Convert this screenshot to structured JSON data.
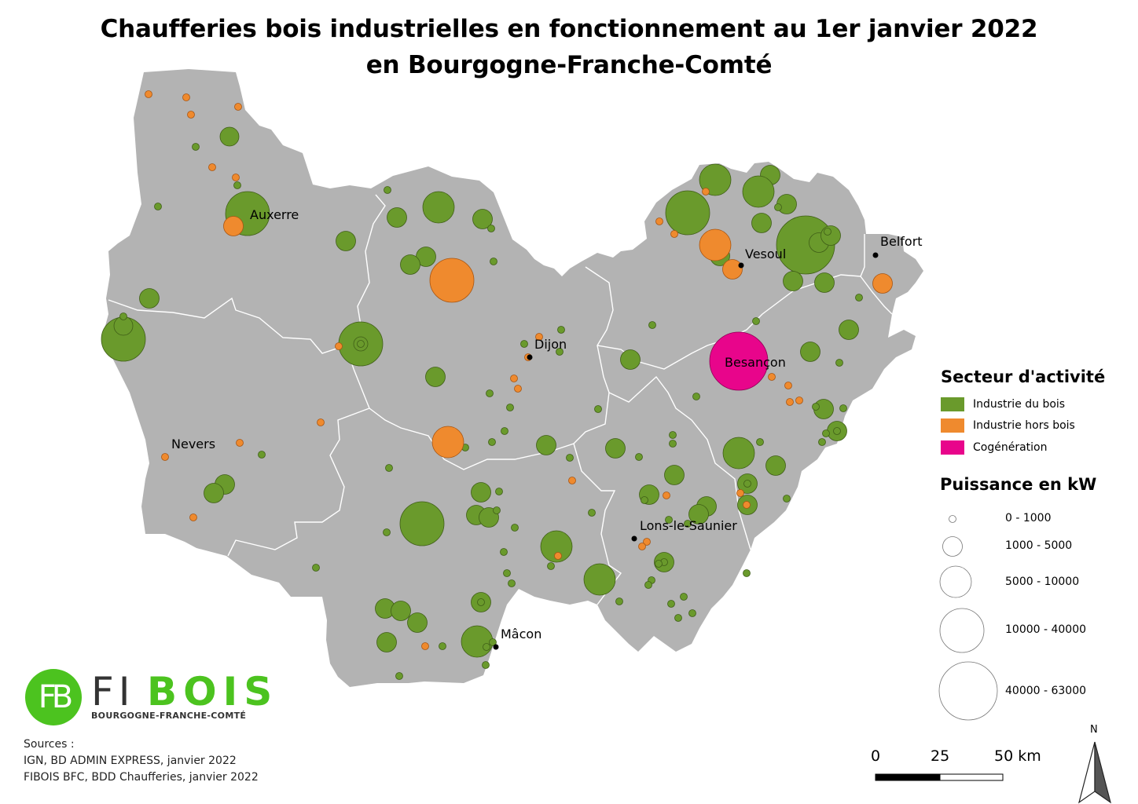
{
  "title": {
    "line1": "Chaufferies bois industrielles en fonctionnement au 1er janvier 2022",
    "line2": "en Bourgogne-Franche-Comté"
  },
  "cities": [
    {
      "name": "Auxerre"
    },
    {
      "name": "Dijon"
    },
    {
      "name": "Vesoul"
    },
    {
      "name": "Belfort"
    },
    {
      "name": "Besançon"
    },
    {
      "name": "Nevers"
    },
    {
      "name": "Lons-le-Saunier"
    },
    {
      "name": "Mâcon"
    }
  ],
  "legend": {
    "sector_title": "Secteur d'activité",
    "sectors": [
      {
        "label": "Industrie du bois",
        "color": "#6a9a2c"
      },
      {
        "label": "Industrie hors bois",
        "color": "#ef8a2e"
      },
      {
        "label": "Cogénération",
        "color": "#e8058b"
      }
    ],
    "power_title": "Puissance en kW",
    "power_classes": [
      "0 - 1000",
      "1000 - 5000",
      "5000 - 10000",
      "10000 - 40000",
      "40000 - 63000"
    ]
  },
  "scale_bar": {
    "labels": [
      "0",
      "25",
      "50 km"
    ]
  },
  "north_arrow": {
    "label": "N",
    "icon": "north-arrow-icon"
  },
  "logo": {
    "fi": "FI",
    "bois": "BOIS",
    "subtitle": "BOURGOGNE-FRANCHE-COMTÉ",
    "mark": "FB"
  },
  "sources": {
    "heading": "Sources :",
    "lines": [
      "IGN, BD ADMIN EXPRESS, janvier 2022",
      "FIBOIS BFC, BDD Chaufferies, janvier 2022"
    ]
  },
  "colors": {
    "region": "#b3b3b3",
    "wood": "#6a9a2c",
    "non_wood": "#ef8a2e",
    "cogeneration": "#e8058b"
  }
}
